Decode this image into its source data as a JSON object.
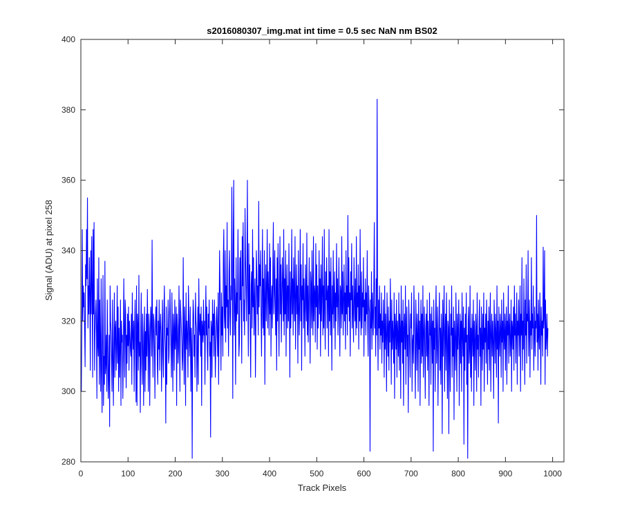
{
  "chart_data": {
    "type": "line",
    "title": "s2016080307_img.mat int time = 0.5 sec  NaN nm BS02",
    "xlabel": "Track Pixels",
    "ylabel": "Signal (ADU) at pixel 258",
    "xlim": [
      0,
      1024
    ],
    "ylim": [
      280,
      400
    ],
    "xticks": [
      0,
      100,
      200,
      300,
      400,
      500,
      600,
      700,
      800,
      900,
      1000
    ],
    "yticks": [
      280,
      300,
      320,
      340,
      360,
      380,
      400
    ],
    "grid": false,
    "legend": "none",
    "line_color": "#0000ff",
    "series": [
      {
        "x_start": 1,
        "x_step": 1,
        "values": [
          300,
          318,
          346,
          320,
          330,
          324,
          328,
          318,
          307,
          336,
          330,
          346,
          332,
          355,
          318,
          330,
          322,
          338,
          328,
          306,
          340,
          322,
          344,
          330,
          304,
          346,
          322,
          348,
          306,
          316,
          322,
          326,
          318,
          298,
          332,
          313,
          310,
          338,
          302,
          326,
          314,
          300,
          332,
          306,
          294,
          316,
          333,
          296,
          310,
          302,
          337,
          305,
          308,
          316,
          300,
          326,
          313,
          298,
          304,
          316,
          290,
          330,
          320,
          317,
          308,
          300,
          326,
          310,
          296,
          314,
          328,
          304,
          318,
          320,
          306,
          312,
          330,
          308,
          324,
          300,
          318,
          304,
          313,
          326,
          296,
          320,
          314,
          316,
          298,
          310,
          332,
          318,
          304,
          326,
          322,
          301,
          316,
          308,
          322,
          313,
          324,
          306,
          320,
          316,
          312,
          310,
          322,
          302,
          328,
          316,
          312,
          320,
          300,
          318,
          326,
          314,
          297,
          330,
          296,
          322,
          318,
          306,
          333,
          310,
          314,
          294,
          318,
          328,
          308,
          302,
          322,
          316,
          296,
          312,
          324,
          300,
          317,
          306,
          322,
          310,
          329,
          316,
          300,
          322,
          318,
          296,
          314,
          324,
          320,
          310,
          343,
          316,
          304,
          322,
          320,
          312,
          298,
          318,
          324,
          316,
          326,
          308,
          302,
          320,
          312,
          326,
          306,
          318,
          322,
          316,
          300,
          314,
          326,
          310,
          304,
          322,
          330,
          316,
          312,
          291,
          324,
          302,
          318,
          316,
          326,
          308,
          310,
          322,
          329,
          318,
          312,
          304,
          328,
          316,
          300,
          322,
          318,
          306,
          326,
          312,
          316,
          324,
          296,
          322,
          318,
          308,
          312,
          330,
          316,
          300,
          326,
          322,
          318,
          314,
          306,
          310,
          338,
          316,
          302,
          324,
          318,
          296,
          328,
          312,
          320,
          316,
          304,
          330,
          322,
          310,
          316,
          324,
          300,
          318,
          312,
          281,
          316,
          326,
          322,
          310,
          316,
          304,
          328,
          320,
          318,
          300,
          312,
          324,
          302,
          332,
          318,
          316,
          322,
          310,
          324,
          296,
          320,
          318,
          314,
          326,
          316,
          320,
          302,
          318,
          330,
          316,
          324,
          312,
          306,
          322,
          318,
          326,
          310,
          314,
          287,
          320,
          318,
          304,
          326,
          316,
          322,
          310,
          326,
          318,
          304,
          312,
          320,
          324,
          316,
          310,
          328,
          302,
          318,
          340,
          330,
          320,
          306,
          328,
          316,
          324,
          310,
          338,
          346,
          322,
          318,
          340,
          314,
          330,
          324,
          348,
          318,
          326,
          310,
          334,
          340,
          322,
          316,
          330,
          326,
          358,
          332,
          298,
          342,
          360,
          316,
          332,
          324,
          302,
          338,
          320,
          328,
          322,
          346,
          330,
          310,
          314,
          338,
          326,
          340,
          322,
          308,
          344,
          330,
          348,
          320,
          326,
          316,
          352,
          338,
          330,
          320,
          334,
          360,
          326,
          310,
          342,
          322,
          336,
          316,
          304,
          330,
          334,
          318,
          346,
          324,
          338,
          316,
          326,
          332,
          304,
          318,
          340,
          334,
          322,
          330,
          316,
          354,
          324,
          336,
          330,
          340,
          322,
          310,
          328,
          346,
          318,
          332,
          316,
          340,
          302,
          326,
          336,
          320,
          330,
          346,
          318,
          334,
          328,
          316,
          342,
          322,
          338,
          310,
          326,
          330,
          318,
          336,
          348,
          322,
          328,
          340,
          324,
          316,
          332,
          306,
          338,
          320,
          342,
          324,
          310,
          330,
          344,
          322,
          336,
          314,
          326,
          338,
          330,
          320,
          346,
          316,
          332,
          322,
          340,
          310,
          328,
          336,
          318,
          330,
          320,
          342,
          328,
          304,
          334,
          318,
          326,
          346,
          322,
          332,
          316,
          338,
          328,
          320,
          344,
          312,
          326,
          336,
          322,
          330,
          308,
          340,
          324,
          316,
          328,
          346,
          320,
          336,
          306,
          330,
          326,
          342,
          318,
          332,
          324,
          310,
          336,
          328,
          320,
          345,
          316,
          330,
          314,
          326,
          338,
          322,
          308,
          334,
          330,
          318,
          340,
          324,
          316,
          344,
          320,
          330,
          328,
          314,
          342,
          324,
          336,
          312,
          330,
          318,
          326,
          340,
          322,
          332,
          310,
          336,
          320,
          328,
          344,
          316,
          330,
          318,
          346,
          322,
          312,
          334,
          326,
          338,
          318,
          328,
          330,
          310,
          346,
          320,
          334,
          316,
          338,
          324,
          306,
          330,
          322,
          340,
          318,
          326,
          334,
          312,
          328,
          320,
          342,
          324,
          332,
          316,
          326,
          338,
          322,
          310,
          330,
          328,
          318,
          344,
          322,
          334,
          316,
          326,
          336,
          320,
          328,
          312,
          340,
          322,
          330,
          316,
          350,
          324,
          338,
          320,
          328,
          310,
          334,
          326,
          342,
          318,
          330,
          322,
          314,
          338,
          326,
          320,
          332,
          316,
          344,
          318,
          328,
          324,
          336,
          312,
          330,
          320,
          346,
          322,
          316,
          334,
          318,
          328,
          324,
          338,
          310,
          326,
          320,
          332,
          316,
          328,
          322,
          340,
          318,
          310,
          330,
          324,
          322,
          283,
          326,
          318,
          334,
          312,
          328,
          322,
          316,
          330,
          348,
          318,
          324,
          310,
          332,
          316,
          383,
          320,
          306,
          326,
          318,
          330,
          312,
          322,
          316,
          328,
          308,
          320,
          314,
          326,
          318,
          304,
          330,
          312,
          322,
          316,
          300,
          328,
          318,
          310,
          324,
          306,
          320,
          314,
          332,
          318,
          302,
          326,
          312,
          320,
          316,
          308,
          328,
          298,
          322,
          318,
          312,
          326,
          304,
          320,
          316,
          310,
          328,
          306,
          322,
          318,
          298,
          330,
          314,
          320,
          308,
          326,
          296,
          318,
          322,
          312,
          330,
          302,
          318,
          324,
          310,
          316,
          294,
          326,
          320,
          312,
          304,
          322,
          318,
          328,
          300,
          314,
          316,
          308,
          330,
          320,
          312,
          298,
          326,
          318,
          306,
          322,
          316,
          300,
          328,
          312,
          320,
          296,
          318,
          326,
          308,
          322,
          310,
          330,
          304,
          316,
          324,
          312,
          298,
          318,
          322,
          310,
          326,
          306,
          320,
          314,
          296,
          328,
          316,
          322,
          302,
          318,
          324,
          308,
          320,
          283,
          326,
          312,
          318,
          300,
          322,
          330,
          308,
          316,
          324,
          296,
          312,
          320,
          328,
          306,
          318,
          302,
          322,
          316,
          288,
          326,
          310,
          320,
          330,
          300,
          316,
          322,
          306,
          328,
          314,
          298,
          320,
          318,
          288,
          326,
          312,
          300,
          322,
          316,
          330,
          304,
          318,
          310,
          324,
          292,
          320,
          314,
          306,
          328,
          316,
          300,
          322,
          312,
          318,
          326,
          296,
          314,
          322,
          308,
          320,
          300,
          328,
          316,
          310,
          324,
          285,
          318,
          306,
          322,
          314,
          328,
          302,
          316,
          281,
          320,
          324,
          308,
          312,
          330,
          304,
          318,
          300,
          322,
          316,
          310,
          326,
          296,
          320,
          314,
          306,
          322,
          318,
          300,
          328,
          312,
          316,
          304,
          320,
          326,
          310,
          318,
          296,
          324,
          316,
          306,
          322,
          312,
          328,
          300,
          318,
          314,
          322,
          308,
          326,
          316,
          302,
          320,
          312,
          324,
          306,
          318,
          328,
          300,
          316,
          322,
          310,
          320,
          314,
          298,
          326,
          318,
          308,
          322,
          316,
          304,
          330,
          312,
          320,
          291,
          324,
          316,
          310,
          322,
          318,
          304,
          326,
          314,
          320,
          300,
          328,
          316,
          312,
          322,
          306,
          318,
          324,
          302,
          320,
          316,
          330,
          308,
          318,
          322,
          310,
          314,
          326,
          300,
          320,
          318,
          312,
          324,
          306,
          330,
          316,
          322,
          308,
          318,
          328,
          302,
          320,
          316,
          326,
          310,
          318,
          330,
          300,
          322,
          316,
          338,
          306,
          320,
          312,
          332,
          318,
          302,
          326,
          316,
          336,
          308,
          322,
          320,
          340,
          310,
          318,
          326,
          304,
          320,
          316,
          338,
          312,
          322,
          318,
          330,
          306,
          316,
          324,
          310,
          320,
          318,
          350,
          314,
          322,
          306,
          326,
          316,
          312,
          328,
          318,
          302,
          324,
          316,
          320,
          310,
          341,
          318,
          322,
          340,
          302,
          326,
          312,
          316,
          322,
          310,
          318
        ]
      }
    ]
  }
}
